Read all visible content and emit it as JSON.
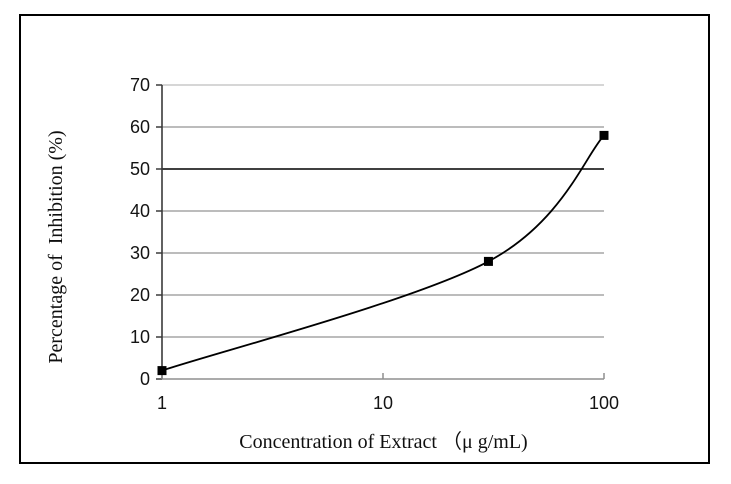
{
  "figure": {
    "background_color": "#ffffff",
    "border_color": "#000000"
  },
  "chart_data": {
    "type": "line",
    "title": "",
    "xlabel": "Concentration of Extract （μ g/mL)",
    "ylabel": "Percentage of  Inhibition (%)",
    "x_scale": "log10",
    "xlim": [
      1,
      100
    ],
    "ylim": [
      0,
      70
    ],
    "x_ticks": [
      1,
      10,
      100
    ],
    "y_ticks": [
      0,
      10,
      20,
      30,
      40,
      50,
      60,
      70
    ],
    "grid": "horizontal",
    "legend": "none",
    "series": [
      {
        "marker": "filled-square",
        "line_style": "smooth",
        "color": "#000000",
        "points": [
          {
            "x": 1,
            "y": 2
          },
          {
            "x": 30,
            "y": 28
          },
          {
            "x": 100,
            "y": 58
          }
        ]
      }
    ],
    "colors": {
      "gridline_default": "#a6a6a6",
      "gridline_top": "#c9c9c9",
      "gridline_50": "#000000",
      "x_axis": "#8f8f8f",
      "y_axis": "#3a3a3a",
      "tick": "#3a3a3a",
      "text": "#141414"
    }
  }
}
